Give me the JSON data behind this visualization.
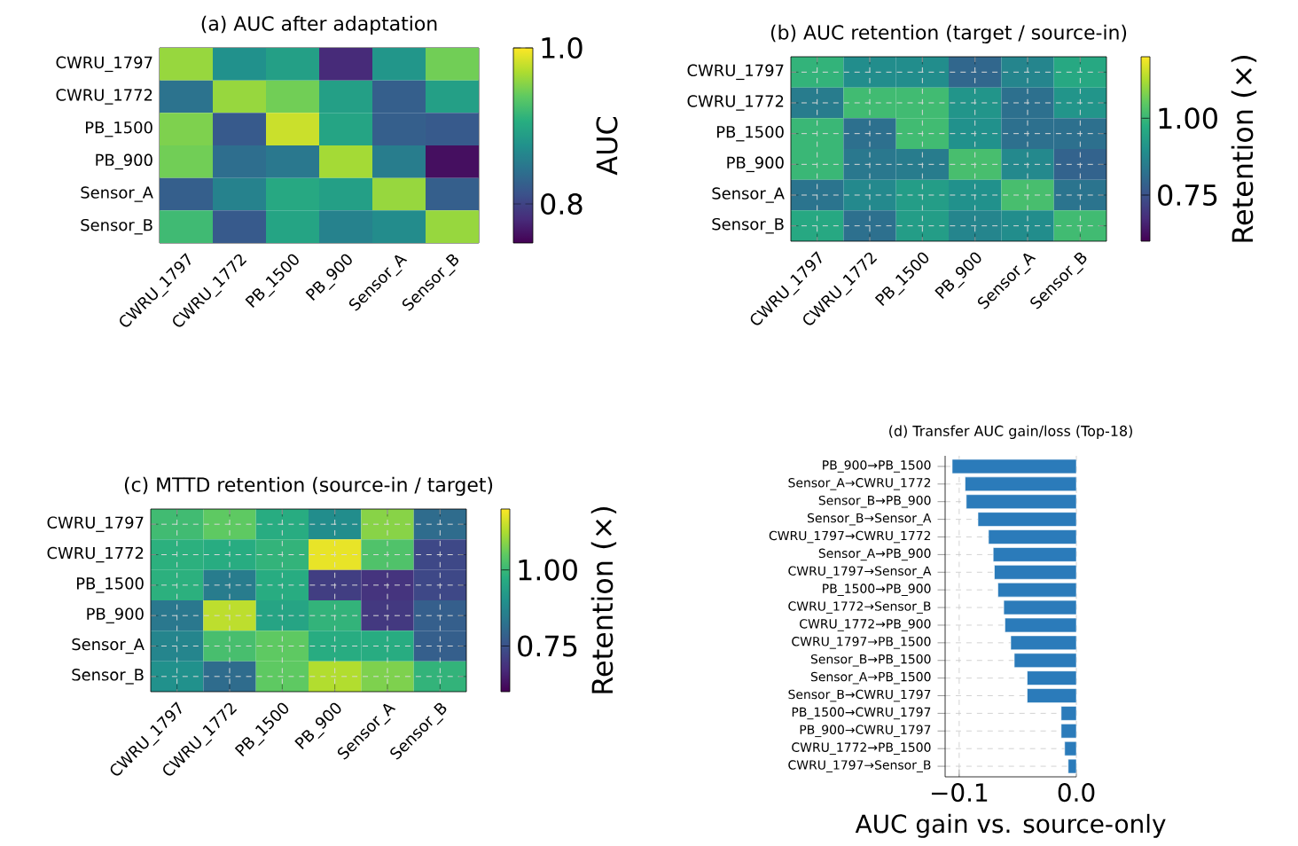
{
  "chart_data": [
    {
      "type": "heatmap",
      "title": "(a) AUC after adaptation",
      "categories": [
        "CWRU_1797",
        "CWRU_1772",
        "PB_1500",
        "PB_900",
        "Sensor_A",
        "Sensor_B"
      ],
      "y_categories": [
        "CWRU_1797",
        "CWRU_1772",
        "PB_1500",
        "PB_900",
        "Sensor_A",
        "Sensor_B"
      ],
      "cells": [
        [
          0.96,
          0.875,
          0.89,
          0.78,
          0.88,
          0.945
        ],
        [
          0.845,
          0.96,
          0.945,
          0.89,
          0.825,
          0.89
        ],
        [
          0.95,
          0.82,
          0.98,
          0.895,
          0.825,
          0.82
        ],
        [
          0.945,
          0.84,
          0.85,
          0.965,
          0.855,
          0.76
        ],
        [
          0.825,
          0.86,
          0.9,
          0.89,
          0.96,
          0.825
        ],
        [
          0.92,
          0.82,
          0.895,
          0.86,
          0.87,
          0.96
        ]
      ],
      "clim": [
        0.75,
        1.0
      ],
      "cticks": [
        {
          "value": 0.8,
          "label": "0.8"
        },
        {
          "value": 1.0,
          "label": "1.0"
        }
      ],
      "clabel": "AUC"
    },
    {
      "type": "heatmap",
      "title": "(b) AUC retention (target / source-in)",
      "categories": [
        "CWRU_1797",
        "CWRU_1772",
        "PB_1500",
        "PB_900",
        "Sensor_A",
        "Sensor_B"
      ],
      "y_categories": [
        "CWRU_1797",
        "CWRU_1772",
        "PB_1500",
        "PB_900",
        "Sensor_A",
        "Sensor_B"
      ],
      "cells": [
        [
          0.99,
          0.89,
          0.89,
          0.8,
          0.87,
          0.96
        ],
        [
          0.85,
          1.01,
          1.01,
          0.91,
          0.82,
          0.91
        ],
        [
          1.0,
          0.82,
          1.01,
          0.9,
          0.82,
          0.82
        ],
        [
          1.0,
          0.84,
          0.85,
          1.02,
          0.88,
          0.79
        ],
        [
          0.83,
          0.88,
          0.93,
          0.9,
          1.02,
          0.83
        ],
        [
          0.96,
          0.82,
          0.93,
          0.87,
          0.89,
          1.01
        ]
      ],
      "clim": [
        0.6,
        1.2
      ],
      "cticks": [
        {
          "value": 0.75,
          "label": "0.75"
        },
        {
          "value": 1.0,
          "label": "1.00"
        }
      ],
      "clabel": "Retention (×)",
      "grid": true
    },
    {
      "type": "heatmap",
      "title": "(c) MTTD retention (source-in / target)",
      "categories": [
        "CWRU_1797",
        "CWRU_1772",
        "PB_1500",
        "PB_900",
        "Sensor_A",
        "Sensor_B"
      ],
      "y_categories": [
        "CWRU_1797",
        "CWRU_1772",
        "PB_1500",
        "PB_900",
        "Sensor_A",
        "Sensor_B"
      ],
      "cells": [
        [
          1.01,
          1.05,
          0.97,
          0.89,
          1.09,
          0.81
        ],
        [
          0.98,
          0.97,
          0.99,
          1.18,
          1.03,
          0.73
        ],
        [
          0.98,
          0.85,
          0.97,
          0.71,
          0.69,
          0.73
        ],
        [
          0.84,
          1.14,
          0.95,
          0.99,
          0.7,
          0.78
        ],
        [
          0.87,
          1.02,
          1.05,
          0.97,
          0.97,
          0.78
        ],
        [
          0.9,
          0.81,
          1.05,
          1.13,
          1.08,
          0.99
        ]
      ],
      "clim": [
        0.6,
        1.2
      ],
      "cticks": [
        {
          "value": 0.75,
          "label": "0.75"
        },
        {
          "value": 1.0,
          "label": "1.00"
        }
      ],
      "clabel": "Retention (×)",
      "grid": true
    },
    {
      "type": "bar",
      "orientation": "horizontal",
      "title": "(d) Transfer AUC gain/loss (Top-18)",
      "xlabel": "AUC gain vs. source-only",
      "categories": [
        "PB_900→PB_1500",
        "Sensor_A→CWRU_1772",
        "Sensor_B→PB_900",
        "Sensor_B→Sensor_A",
        "CWRU_1797→CWRU_1772",
        "Sensor_A→PB_900",
        "CWRU_1797→Sensor_A",
        "PB_1500→PB_900",
        "CWRU_1772→Sensor_B",
        "CWRU_1772→PB_900",
        "CWRU_1797→PB_1500",
        "Sensor_B→PB_1500",
        "Sensor_A→PB_1500",
        "Sensor_B→CWRU_1797",
        "PB_1500→CWRU_1797",
        "PB_900→CWRU_1797",
        "CWRU_1772→PB_1500",
        "CWRU_1797→Sensor_B"
      ],
      "values": [
        -0.106,
        -0.095,
        -0.094,
        -0.084,
        -0.075,
        -0.071,
        -0.07,
        -0.067,
        -0.062,
        -0.061,
        -0.056,
        -0.053,
        -0.042,
        -0.042,
        -0.013,
        -0.013,
        -0.01,
        -0.007
      ],
      "color": "#2b7bba",
      "xlim": [
        -0.112,
        0.0
      ],
      "xticks": [
        {
          "value": -0.1,
          "label": "−0.1"
        },
        {
          "value": 0.0,
          "label": "0.0"
        }
      ],
      "grid": true
    }
  ]
}
